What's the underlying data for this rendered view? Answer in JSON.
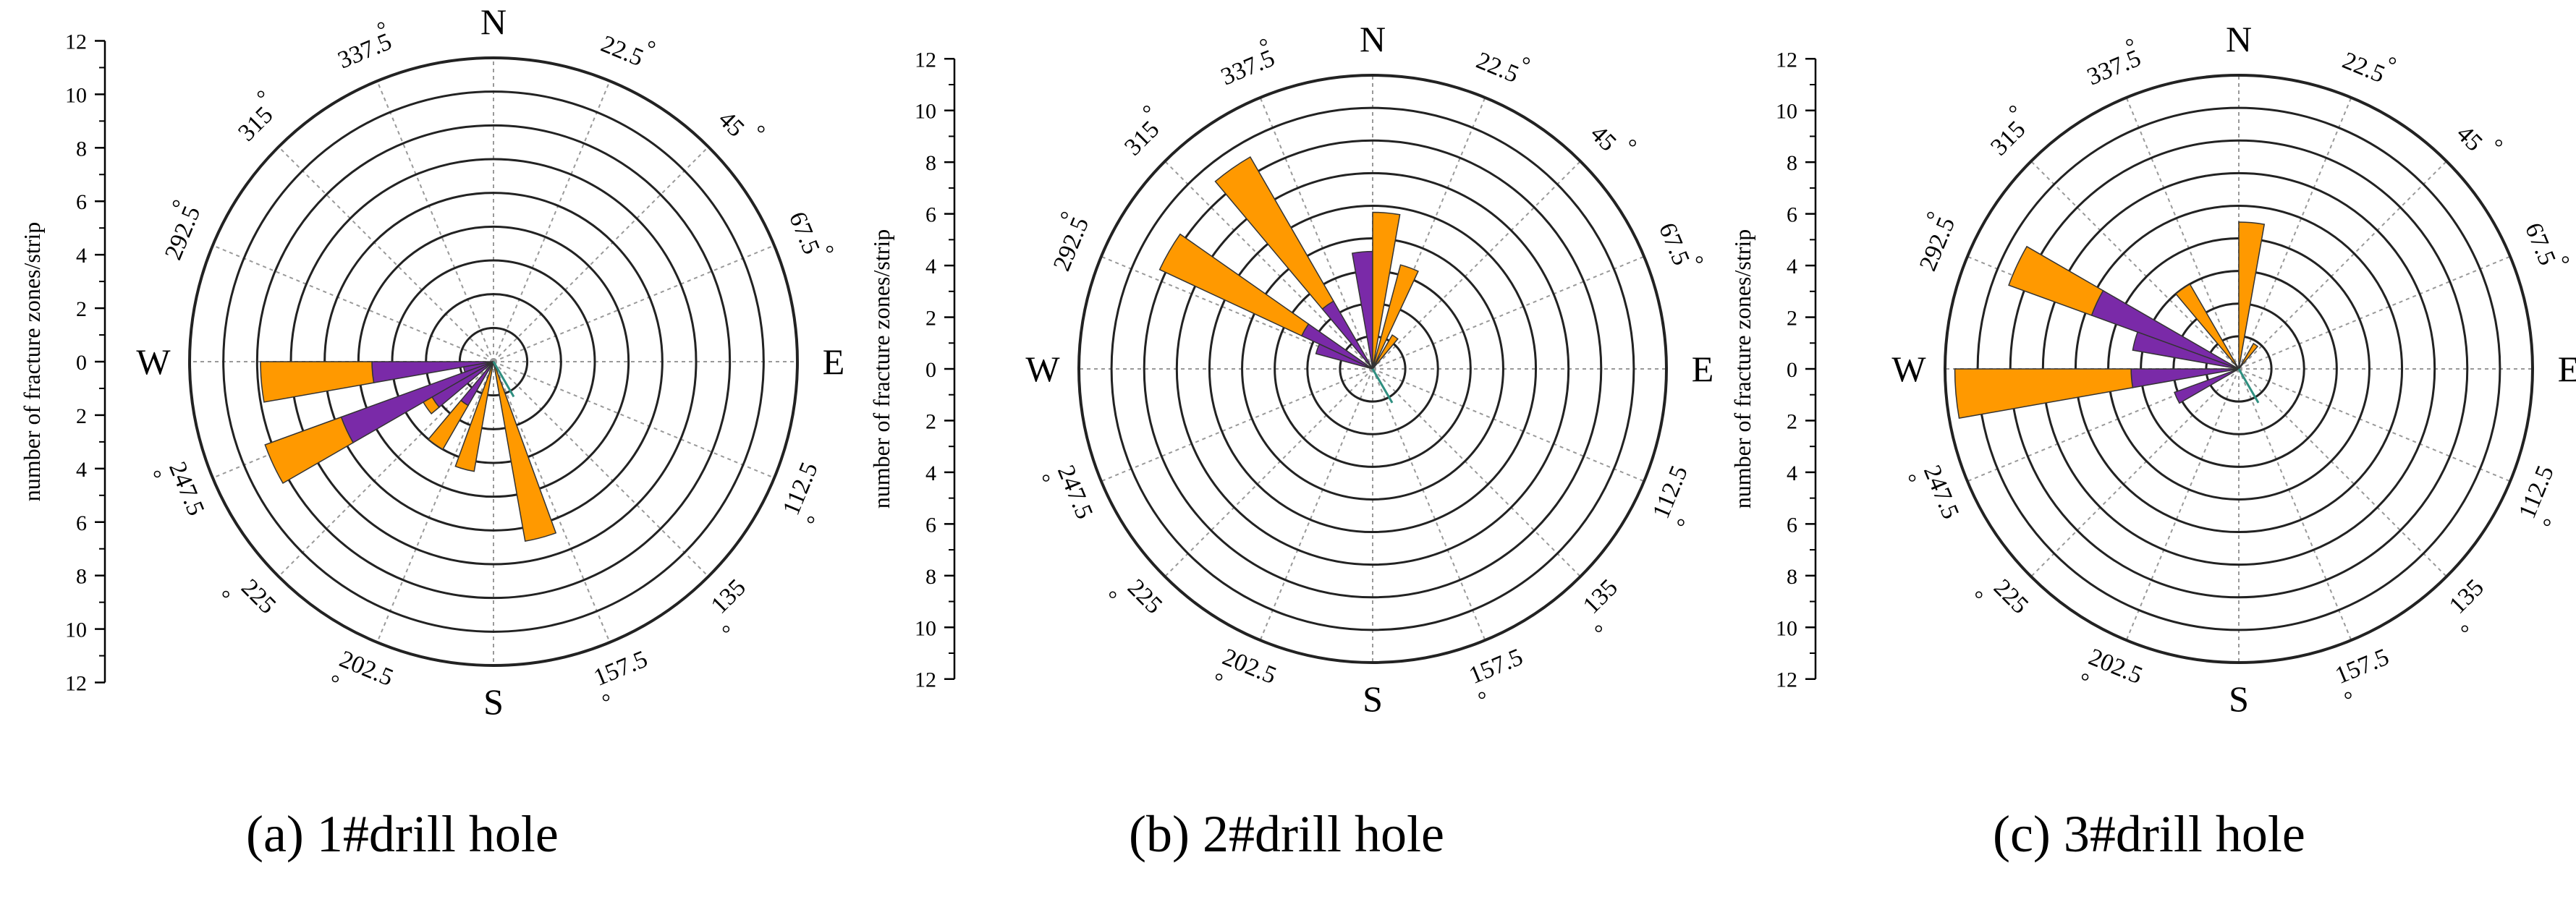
{
  "colors": {
    "orange": "#ff9900",
    "purple": "#7a2aa8",
    "teal": "#2f8f80",
    "grid": "#999999",
    "ring": "#222222"
  },
  "chart_data": [
    {
      "type": "polar-bar",
      "caption": "(a) 1#drill hole",
      "ylabel": "number of fracture zones/strip",
      "scale_ticks": [
        "12",
        "10",
        "8",
        "6",
        "4",
        "2",
        "0",
        "2",
        "4",
        "6",
        "8",
        "10",
        "12"
      ],
      "compass": [
        "N",
        "E",
        "S",
        "W"
      ],
      "angle_labels": [
        "22.5",
        "45",
        "67.5",
        "112.5",
        "135",
        "157.5",
        "202.5",
        "225",
        "247.5",
        "292.5",
        "315",
        "337.5"
      ],
      "bars": [
        {
          "angle": 265,
          "purple": 6.0,
          "total": 11.5
        },
        {
          "angle": 245,
          "purple": 8.0,
          "total": 12.0
        },
        {
          "angle": 235,
          "purple": 3.5,
          "total": 4.0
        },
        {
          "angle": 215,
          "purple": 2.5,
          "total": 5.0
        },
        {
          "angle": 195,
          "purple": 0.0,
          "total": 5.5
        },
        {
          "angle": 165,
          "purple": 0.0,
          "total": 9.0
        },
        {
          "angle": 255,
          "purple": 1.5,
          "total": 1.5
        }
      ]
    },
    {
      "type": "polar-bar",
      "caption": "(b) 2#drill hole",
      "ylabel": "number of fracture zones/strip",
      "scale_ticks": [
        "12",
        "10",
        "8",
        "6",
        "4",
        "2",
        "0",
        "2",
        "4",
        "6",
        "8",
        "10",
        "12"
      ],
      "compass": [
        "N",
        "E",
        "S",
        "W"
      ],
      "angle_labels": [
        "22.5",
        "45",
        "67.5",
        "112.5",
        "135",
        "157.5",
        "202.5",
        "225",
        "247.5",
        "292.5",
        "315",
        "337.5"
      ],
      "bars": [
        {
          "angle": 325,
          "purple": 4.0,
          "total": 12.5
        },
        {
          "angle": 300,
          "purple": 4.0,
          "total": 12.0
        },
        {
          "angle": 290,
          "purple": 3.0,
          "total": 3.0
        },
        {
          "angle": 355,
          "purple": 6.0,
          "total": 6.0
        },
        {
          "angle": 5,
          "purple": 0.0,
          "total": 8.0
        },
        {
          "angle": 20,
          "purple": 0.0,
          "total": 5.5
        },
        {
          "angle": 35,
          "purple": 0.0,
          "total": 2.0
        }
      ]
    },
    {
      "type": "polar-bar",
      "caption": "(c) 3#drill hole",
      "ylabel": "number of fracture zones/strip",
      "scale_ticks": [
        "12",
        "10",
        "8",
        "6",
        "4",
        "2",
        "0",
        "2",
        "4",
        "6",
        "8",
        "10",
        "12"
      ],
      "compass": [
        "N",
        "E",
        "S",
        "W"
      ],
      "angle_labels": [
        "22.5",
        "45",
        "67.5",
        "112.5",
        "135",
        "157.5",
        "202.5",
        "225",
        "247.5",
        "292.5",
        "315",
        "337.5"
      ],
      "bars": [
        {
          "angle": 295,
          "purple": 8.0,
          "total": 12.5
        },
        {
          "angle": 265,
          "purple": 5.5,
          "total": 14.5
        },
        {
          "angle": 245,
          "purple": 3.5,
          "total": 3.5
        },
        {
          "angle": 285,
          "purple": 5.5,
          "total": 5.5
        },
        {
          "angle": 325,
          "purple": 0.0,
          "total": 5.0
        },
        {
          "angle": 5,
          "purple": 0.0,
          "total": 7.5
        },
        {
          "angle": 35,
          "purple": 0.0,
          "total": 1.5
        }
      ]
    }
  ]
}
